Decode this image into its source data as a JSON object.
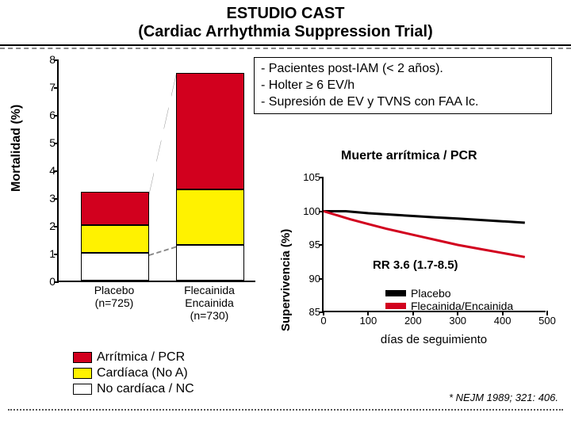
{
  "title": {
    "line1": "ESTUDIO CAST",
    "line2": "(Cardiac Arrhythmia Suppression Trial)"
  },
  "info_box": {
    "line1": "- Pacientes post-IAM (< 2 años).",
    "line2": "- Holter ≥ 6 EV/h",
    "line3": "- Supresión de EV y TVNS con FAA Ic."
  },
  "bar_chart": {
    "type": "stacked-bar",
    "y_label": "Mortalidad (%)",
    "y_min": 0,
    "y_max": 8,
    "y_step": 1,
    "categories": [
      {
        "label_line1": "Placebo",
        "label_line2": "(n=725)"
      },
      {
        "label_line1": "Flecainida",
        "label_line2": "Encainida",
        "label_line3": "(n=730)"
      }
    ],
    "series": [
      {
        "key": "arr",
        "label": "Arrítmica / PCR",
        "color": "#d2001e"
      },
      {
        "key": "card",
        "label": "Cardíaca (No A)",
        "color": "#fff200"
      },
      {
        "key": "noc",
        "label": "No cardíaca / NC",
        "color": "#ffffff"
      }
    ],
    "data": {
      "placebo": {
        "noc": 1.0,
        "card": 1.0,
        "arr": 1.2
      },
      "flecainida": {
        "noc": 1.3,
        "card": 2.0,
        "arr": 4.2
      }
    },
    "label_fontsize": 14,
    "background_color": "#ffffff",
    "border_color": "#000000"
  },
  "subhead": "Muerte arrítmica / PCR",
  "surv_chart": {
    "type": "line",
    "y_label": "Supervivencia (%)",
    "x_label": "días de seguimiento",
    "y_min": 85,
    "y_max": 105,
    "y_step": 5,
    "x_min": 0,
    "x_max": 500,
    "x_step": 100,
    "series": [
      {
        "name": "Placebo",
        "color": "#000000",
        "width": 3,
        "points": [
          [
            0,
            100
          ],
          [
            50,
            100
          ],
          [
            100,
            99.7
          ],
          [
            150,
            99.5
          ],
          [
            200,
            99.3
          ],
          [
            250,
            99.1
          ],
          [
            300,
            98.9
          ],
          [
            350,
            98.7
          ],
          [
            400,
            98.5
          ],
          [
            450,
            98.3
          ]
        ]
      },
      {
        "name": "Flecainida/Encainida",
        "color": "#d2001e",
        "width": 3,
        "points": [
          [
            0,
            100
          ],
          [
            30,
            99.4
          ],
          [
            60,
            98.8
          ],
          [
            100,
            98.1
          ],
          [
            140,
            97.4
          ],
          [
            180,
            96.8
          ],
          [
            220,
            96.2
          ],
          [
            260,
            95.6
          ],
          [
            300,
            95.0
          ],
          [
            350,
            94.4
          ],
          [
            400,
            93.8
          ],
          [
            450,
            93.2
          ]
        ]
      }
    ],
    "rr_text": "RR 3.6 (1.7-8.5)"
  },
  "footnote": "* NEJM 1989; 321: 406."
}
